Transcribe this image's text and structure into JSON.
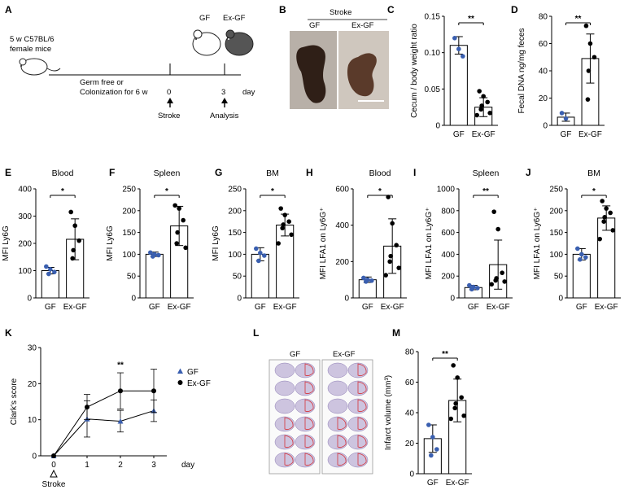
{
  "panel_letters": {
    "A": "A",
    "B": "B",
    "C": "C",
    "D": "D",
    "E": "E",
    "F": "F",
    "G": "G",
    "H": "H",
    "I": "I",
    "J": "J",
    "K": "K",
    "L": "L",
    "M": "M"
  },
  "schematic": {
    "mouse_line1": "5 w C57BL/6",
    "mouse_line2": "female mice",
    "phase_line1": "Germ free or",
    "phase_line2": "Colonization for 6 w",
    "t0": "0",
    "t3": "3",
    "unit": "day",
    "event0": "Stroke",
    "event3": "Analysis",
    "mouse_label_gf": "GF",
    "mouse_label_exgf": "Ex-GF"
  },
  "photo_b": {
    "title": "Stroke",
    "left_label": "GF",
    "right_label": "Ex-GF",
    "colors": {
      "left_tissue": "#2f1f17",
      "right_tissue": "#5a3a2a",
      "left_bg": "#b8b0a8",
      "right_bg": "#cfc7be"
    }
  },
  "brain_l": {
    "left_label": "GF",
    "right_label": "Ex-GF",
    "colors": {
      "stain": "#a897c8",
      "infarct_outline": "#d6333a"
    }
  },
  "colors": {
    "gf": "#3a5fb0",
    "exgf": "#000000"
  },
  "chart_data": [
    {
      "panel": "C",
      "type": "bar",
      "categories": [
        "GF",
        "Ex-GF"
      ],
      "values": [
        0.11,
        0.025
      ],
      "errors": [
        0.012,
        0.013
      ],
      "ylabel": "Cecum / body weight ratio",
      "title": "",
      "ylim": [
        0,
        0.15
      ],
      "yticks": [
        0,
        0.05,
        0.1,
        0.15
      ],
      "ytick_labels": [
        "0",
        "0.05",
        "0.10",
        "0.15"
      ],
      "significance": "**",
      "points": [
        [
          0.12,
          0.105,
          0.095
        ],
        [
          0.047,
          0.04,
          0.032,
          0.027,
          0.022,
          0.017,
          0.014
        ]
      ]
    },
    {
      "panel": "D",
      "type": "bar",
      "categories": [
        "GF",
        "Ex-GF"
      ],
      "values": [
        6,
        49
      ],
      "errors": [
        3,
        18
      ],
      "ylabel": "Fecal DNA ng/mg feces",
      "title": "",
      "ylim": [
        0,
        80
      ],
      "yticks": [
        0,
        20,
        40,
        60,
        80
      ],
      "ytick_labels": [
        "0",
        "20",
        "40",
        "60",
        "80"
      ],
      "significance": "**",
      "points": [
        [
          9,
          5
        ],
        [
          73,
          60,
          50,
          40,
          19
        ]
      ]
    },
    {
      "panel": "E",
      "type": "bar",
      "categories": [
        "GF",
        "Ex-GF"
      ],
      "values": [
        100,
        215
      ],
      "errors": [
        12,
        75
      ],
      "ylabel": "MFI Ly6G",
      "title": "Blood",
      "ylim": [
        0,
        400
      ],
      "yticks": [
        0,
        100,
        200,
        300,
        400
      ],
      "ytick_labels": [
        "0",
        "100",
        "200",
        "300",
        "400"
      ],
      "significance": "*",
      "points": [
        [
          115,
          105,
          95,
          88
        ],
        [
          315,
          265,
          210,
          175,
          145
        ]
      ]
    },
    {
      "panel": "F",
      "type": "bar",
      "categories": [
        "GF",
        "Ex-GF"
      ],
      "values": [
        100,
        165
      ],
      "errors": [
        5,
        45
      ],
      "ylabel": "MFI Ly6G",
      "title": "Spleen",
      "ylim": [
        0,
        250
      ],
      "yticks": [
        0,
        50,
        100,
        150,
        200,
        250
      ],
      "ytick_labels": [
        "0",
        "50",
        "100",
        "150",
        "200",
        "250"
      ],
      "significance": "*",
      "points": [
        [
          104,
          100,
          98,
          95
        ],
        [
          212,
          205,
          178,
          150,
          125,
          115
        ]
      ]
    },
    {
      "panel": "G",
      "type": "bar",
      "categories": [
        "GF",
        "Ex-GF"
      ],
      "values": [
        100,
        167
      ],
      "errors": [
        15,
        25
      ],
      "ylabel": "MFI Ly6G",
      "title": "BM",
      "ylim": [
        0,
        250
      ],
      "yticks": [
        0,
        50,
        100,
        150,
        200,
        250
      ],
      "ytick_labels": [
        "0",
        "50",
        "100",
        "150",
        "200",
        "250"
      ],
      "significance": "*",
      "points": [
        [
          113,
          103,
          97,
          85
        ],
        [
          205,
          190,
          175,
          168,
          160,
          145,
          125
        ]
      ]
    },
    {
      "panel": "H",
      "type": "bar",
      "categories": [
        "GF",
        "Ex-GF"
      ],
      "values": [
        100,
        285
      ],
      "errors": [
        15,
        150
      ],
      "ylabel": "MFI LFA1 on Ly6G⁺",
      "title": "Blood",
      "ylim": [
        0,
        600
      ],
      "yticks": [
        0,
        200,
        400,
        600
      ],
      "ytick_labels": [
        "0",
        "200",
        "400",
        "600"
      ],
      "significance": "*",
      "points": [
        [
          110,
          100,
          95,
          90
        ],
        [
          555,
          410,
          290,
          230,
          200,
          165,
          125
        ]
      ]
    },
    {
      "panel": "I",
      "type": "bar",
      "categories": [
        "GF",
        "Ex-GF"
      ],
      "values": [
        95,
        305
      ],
      "errors": [
        20,
        225
      ],
      "ylabel": "MFI LFA1 on Ly6G⁺",
      "title": "Spleen",
      "ylim": [
        0,
        1000
      ],
      "yticks": [
        0,
        200,
        400,
        600,
        800,
        1000
      ],
      "ytick_labels": [
        "0",
        "200",
        "400",
        "600",
        "800",
        "1000"
      ],
      "significance": "**",
      "points": [
        [
          115,
          100,
          90,
          80
        ],
        [
          790,
          630,
          230,
          180,
          160,
          150,
          125
        ]
      ]
    },
    {
      "panel": "J",
      "type": "bar",
      "categories": [
        "GF",
        "Ex-GF"
      ],
      "values": [
        100,
        183
      ],
      "errors": [
        13,
        28
      ],
      "ylabel": "MFI LFA1 on Ly6G⁺",
      "title": "BM",
      "ylim": [
        0,
        250
      ],
      "yticks": [
        0,
        50,
        100,
        150,
        200,
        250
      ],
      "ytick_labels": [
        "0",
        "50",
        "100",
        "150",
        "200",
        "250"
      ],
      "significance": "*",
      "points": [
        [
          113,
          100,
          93,
          88
        ],
        [
          222,
          205,
          195,
          185,
          175,
          155,
          135
        ]
      ]
    },
    {
      "panel": "K",
      "type": "line",
      "x": [
        0,
        1,
        2,
        3
      ],
      "xticks_extra": "day",
      "series": [
        {
          "name": "GF",
          "values": [
            0,
            10.2,
            9.6,
            12.5
          ],
          "errors": [
            0,
            5,
            3,
            3
          ]
        },
        {
          "name": "Ex-GF",
          "values": [
            0,
            13.5,
            18,
            18
          ],
          "errors": [
            0,
            3.5,
            5,
            6
          ]
        }
      ],
      "ylabel": "Clark's score",
      "xlabel": "day",
      "ylim": [
        0,
        30
      ],
      "yticks": [
        0,
        10,
        20,
        30
      ],
      "ytick_labels": [
        "0",
        "10",
        "20",
        "30"
      ],
      "annotation": "**",
      "annotation_x": 2,
      "event_label": "Stroke",
      "legend": "top-right"
    },
    {
      "panel": "M",
      "type": "bar",
      "categories": [
        "GF",
        "Ex-GF"
      ],
      "values": [
        23,
        48
      ],
      "errors": [
        9,
        14
      ],
      "ylabel": "Infarct volume (mm³)",
      "title": "",
      "ylim": [
        0,
        80
      ],
      "yticks": [
        0,
        20,
        40,
        60,
        80
      ],
      "ytick_labels": [
        "0",
        "20",
        "40",
        "60",
        "80"
      ],
      "significance": "**",
      "points": [
        [
          32,
          24,
          16,
          12
        ],
        [
          71,
          63,
          50,
          46,
          43,
          38,
          36
        ]
      ]
    }
  ]
}
